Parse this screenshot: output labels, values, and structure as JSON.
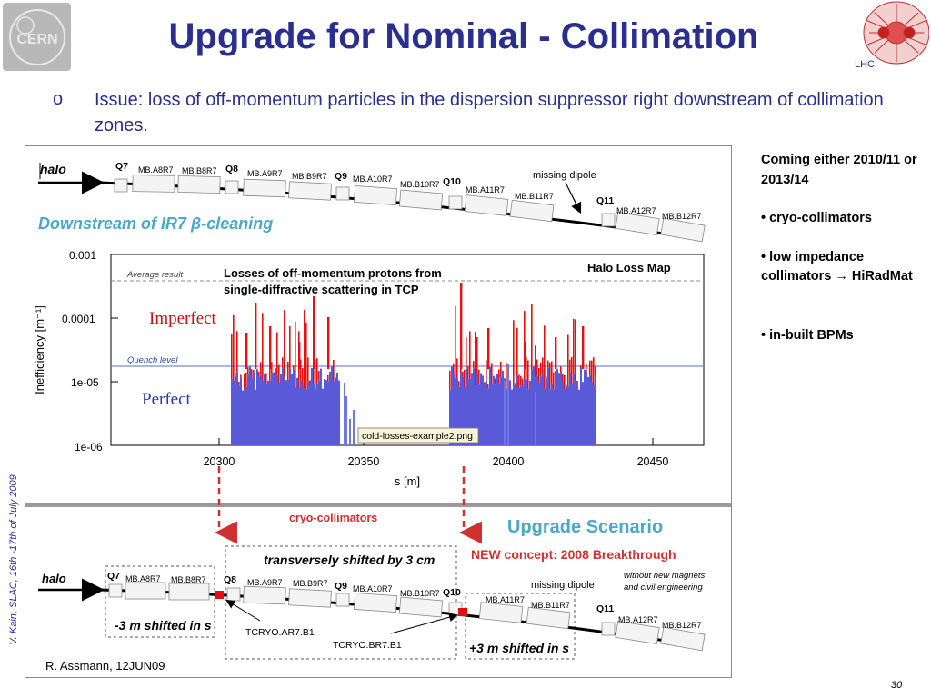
{
  "slide": {
    "title": "Upgrade for Nominal - Collimation",
    "bullet_marker": "o",
    "issue": "Issue: loss of off-momentum particles in the dispersion suppressor right downstream of collimation zones.",
    "page_number": "30",
    "side_author": "V. Kain, SLAC, 16th -17th of July 2009",
    "logo_cern": "CERN",
    "logo_lhc": "LHC"
  },
  "notes": [
    "Coming either 2010/11 or 2013/14",
    "• cryo-collimators",
    "• low impedance collimators → HiRadMat",
    "• in-built BPMs"
  ],
  "figure": {
    "top": {
      "halo": "halo",
      "missing_dipole": "missing dipole",
      "section_title": "Downstream of IR7 β-cleaning",
      "magnets": [
        "Q7",
        "MB.A8R7",
        "MB.B8R7",
        "Q8",
        "MB.A9R7",
        "MB.B9R7",
        "Q9",
        "MB.A10R7",
        "MB.B10R7",
        "Q10",
        "MB.A11R7",
        "MB.B11R7",
        "Q11",
        "MB.A12R7",
        "MB.B12R7"
      ]
    },
    "plot": {
      "ylabel": "Inefficiency [m⁻¹]",
      "xlabel": "s [m]",
      "yticks": [
        "0.001",
        "0.0001",
        "1e-05",
        "1e-06"
      ],
      "xticks": [
        "20300",
        "20350",
        "20400",
        "20450"
      ],
      "average_label": "Average result",
      "quench_label": "Quench level",
      "title_line1": "Losses of off-momentum protons from",
      "title_line2": "single-diffractive scattering in TCP",
      "map_title": "Halo Loss Map",
      "imperfect": "Imperfect",
      "perfect": "Perfect",
      "file_label": "cold-losses-example2.png"
    },
    "bottom": {
      "cryo_collimators": "cryo-collimators",
      "upgrade_scenario": "Upgrade Scenario",
      "shifted_3cm": "transversely shifted by 3 cm",
      "new_concept": "NEW concept: 2008 Breakthrough",
      "halo": "halo",
      "missing_dipole": "missing dipole",
      "without_magnets_1": "without new magnets",
      "without_magnets_2": "and civil engineering",
      "minus3m": "-3 m shifted in s",
      "plus3m": "+3 m shifted in s",
      "tcryo_a": "TCRYO.AR7.B1",
      "tcryo_b": "TCRYO.BR7.B1",
      "credit": "R. Assmann, 12JUN09",
      "magnets": [
        "Q7",
        "MB.A8R7",
        "MB.B8R7",
        "Q8",
        "MB.A9R7",
        "MB.B9R7",
        "Q9",
        "MB.A10R7",
        "MB.B10R7",
        "Q10",
        "MB.A11R7",
        "MB.B11R7",
        "Q11",
        "MB.A12R7",
        "MB.B12R7"
      ]
    }
  }
}
